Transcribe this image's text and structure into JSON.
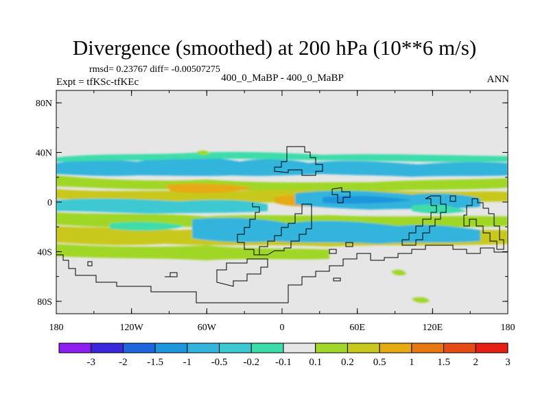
{
  "title": "Divergence (smoothed) at 200 hPa (10**6 m/s)",
  "stats": "rmsd= 0.23767 diff= -0.00507275",
  "expt": "Expt = tfKSc-tfKEc",
  "case_label": "400_0_MaBP - 400_0_MaBP",
  "season": "ANN",
  "map": {
    "lat_ticks": [
      "80N",
      "40N",
      "0",
      "40S",
      "80S"
    ],
    "lon_ticks": [
      "180",
      "120W",
      "60W",
      "0",
      "60E",
      "120E",
      "180"
    ]
  },
  "colorbar": {
    "labels": [
      "-3",
      "-2",
      "-1.5",
      "-1",
      "-0.5",
      "-0.2",
      "-0.1",
      "0.1",
      "0.2",
      "0.5",
      "1",
      "1.5",
      "2",
      "3"
    ],
    "colors": [
      "#8c1ef0",
      "#3c28dc",
      "#1e64dc",
      "#1e96dc",
      "#32b4dc",
      "#3cc8d2",
      "#3cdcaa",
      "#e6e6e6",
      "#a0d728",
      "#c8c81e",
      "#e6aa14",
      "#e67814",
      "#e64b14",
      "#e61e14"
    ]
  },
  "colors": {
    "background": "#e6e6e6",
    "outline": "#000000"
  }
}
